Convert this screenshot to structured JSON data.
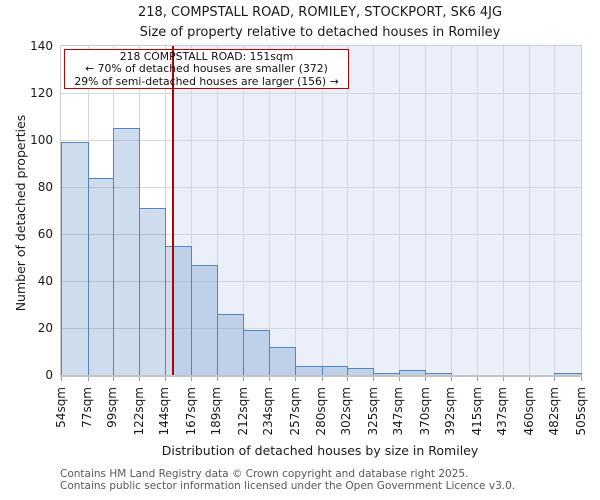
{
  "title": "218, COMPSTALL ROAD, ROMILEY, STOCKPORT, SK6 4JG",
  "subtitle": "Size of property relative to detached houses in Romiley",
  "annotation": {
    "line1": "218 COMPSTALL ROAD: 151sqm",
    "line2": "← 70% of detached houses are smaller (372)",
    "line3": "29% of semi-detached houses are larger (156) →"
  },
  "chart_data": {
    "type": "bar",
    "title": "Size of property relative to detached houses in Romiley",
    "xlabel": "Distribution of detached houses by size in Romiley",
    "ylabel": "Number of detached properties",
    "bin_edges_sqm": [
      54,
      77,
      99,
      122,
      144,
      167,
      189,
      212,
      234,
      257,
      280,
      302,
      325,
      347,
      370,
      392,
      415,
      437,
      460,
      482,
      505
    ],
    "categories": [
      "54sqm",
      "77sqm",
      "99sqm",
      "122sqm",
      "144sqm",
      "167sqm",
      "189sqm",
      "212sqm",
      "234sqm",
      "257sqm",
      "280sqm",
      "302sqm",
      "325sqm",
      "347sqm",
      "370sqm",
      "392sqm",
      "415sqm",
      "437sqm",
      "460sqm",
      "482sqm",
      "505sqm"
    ],
    "values": [
      99,
      84,
      105,
      71,
      55,
      47,
      26,
      19,
      12,
      4,
      4,
      3,
      1,
      2,
      1,
      0,
      0,
      0,
      0,
      1
    ],
    "ylim": [
      0,
      140
    ],
    "yticks": [
      0,
      20,
      40,
      60,
      80,
      100,
      120,
      140
    ],
    "grid": true,
    "legend": "none",
    "marker_value_sqm": 151,
    "marker_color": "#b40000",
    "bar_fill": "rgba(79,129,189,0.28)",
    "bar_border": "#4f86c6",
    "shade_color": "#eaeffa",
    "grid_color": "#d4d7de",
    "annotation_border_color": "#bb0000"
  },
  "footer": {
    "line1": "Contains HM Land Registry data © Crown copyright and database right 2025.",
    "line2": "Contains public sector information licensed under the Open Government Licence v3.0."
  }
}
